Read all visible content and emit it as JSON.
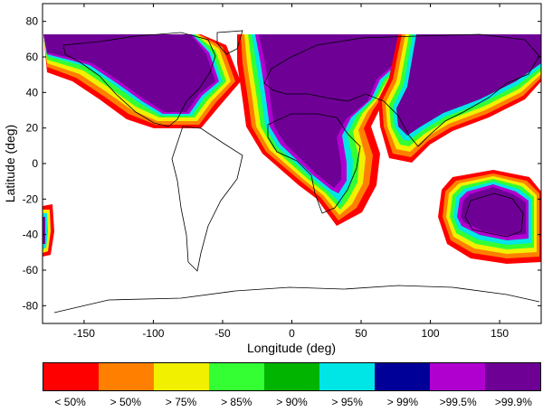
{
  "axes": {
    "xlabel": "Longitude (deg)",
    "ylabel": "Latitude (deg)",
    "xlim": [
      -180,
      180
    ],
    "ylim": [
      -90,
      90
    ],
    "xticks": [
      "-150",
      "-100",
      "-50",
      "0",
      "50",
      "100",
      "150"
    ],
    "yticks": [
      "80",
      "60",
      "40",
      "20",
      "0",
      "-20",
      "-40",
      "-60",
      "-80"
    ]
  },
  "legend": {
    "bins": [
      {
        "label": "< 50%",
        "color": "#ff0000"
      },
      {
        "label": "> 50%",
        "color": "#ff8000"
      },
      {
        "label": "> 75%",
        "color": "#f0f000"
      },
      {
        "label": "> 85%",
        "color": "#33ff33"
      },
      {
        "label": "> 90%",
        "color": "#00b400"
      },
      {
        "label": "> 95%",
        "color": "#00e6e6"
      },
      {
        "label": "> 99%",
        "color": "#000099"
      },
      {
        "label": ">99.5%",
        "color": "#b000d0"
      },
      {
        "label": ">99.9%",
        "color": "#6e0096"
      }
    ]
  },
  "map": {
    "coverage_regions": [
      "north-america",
      "eastern-pacific-north",
      "atlantic-europe-africa",
      "asia",
      "australia"
    ]
  },
  "colors": {
    "high": "#6e0096",
    "frame": "#000000",
    "coast": "#000000"
  }
}
